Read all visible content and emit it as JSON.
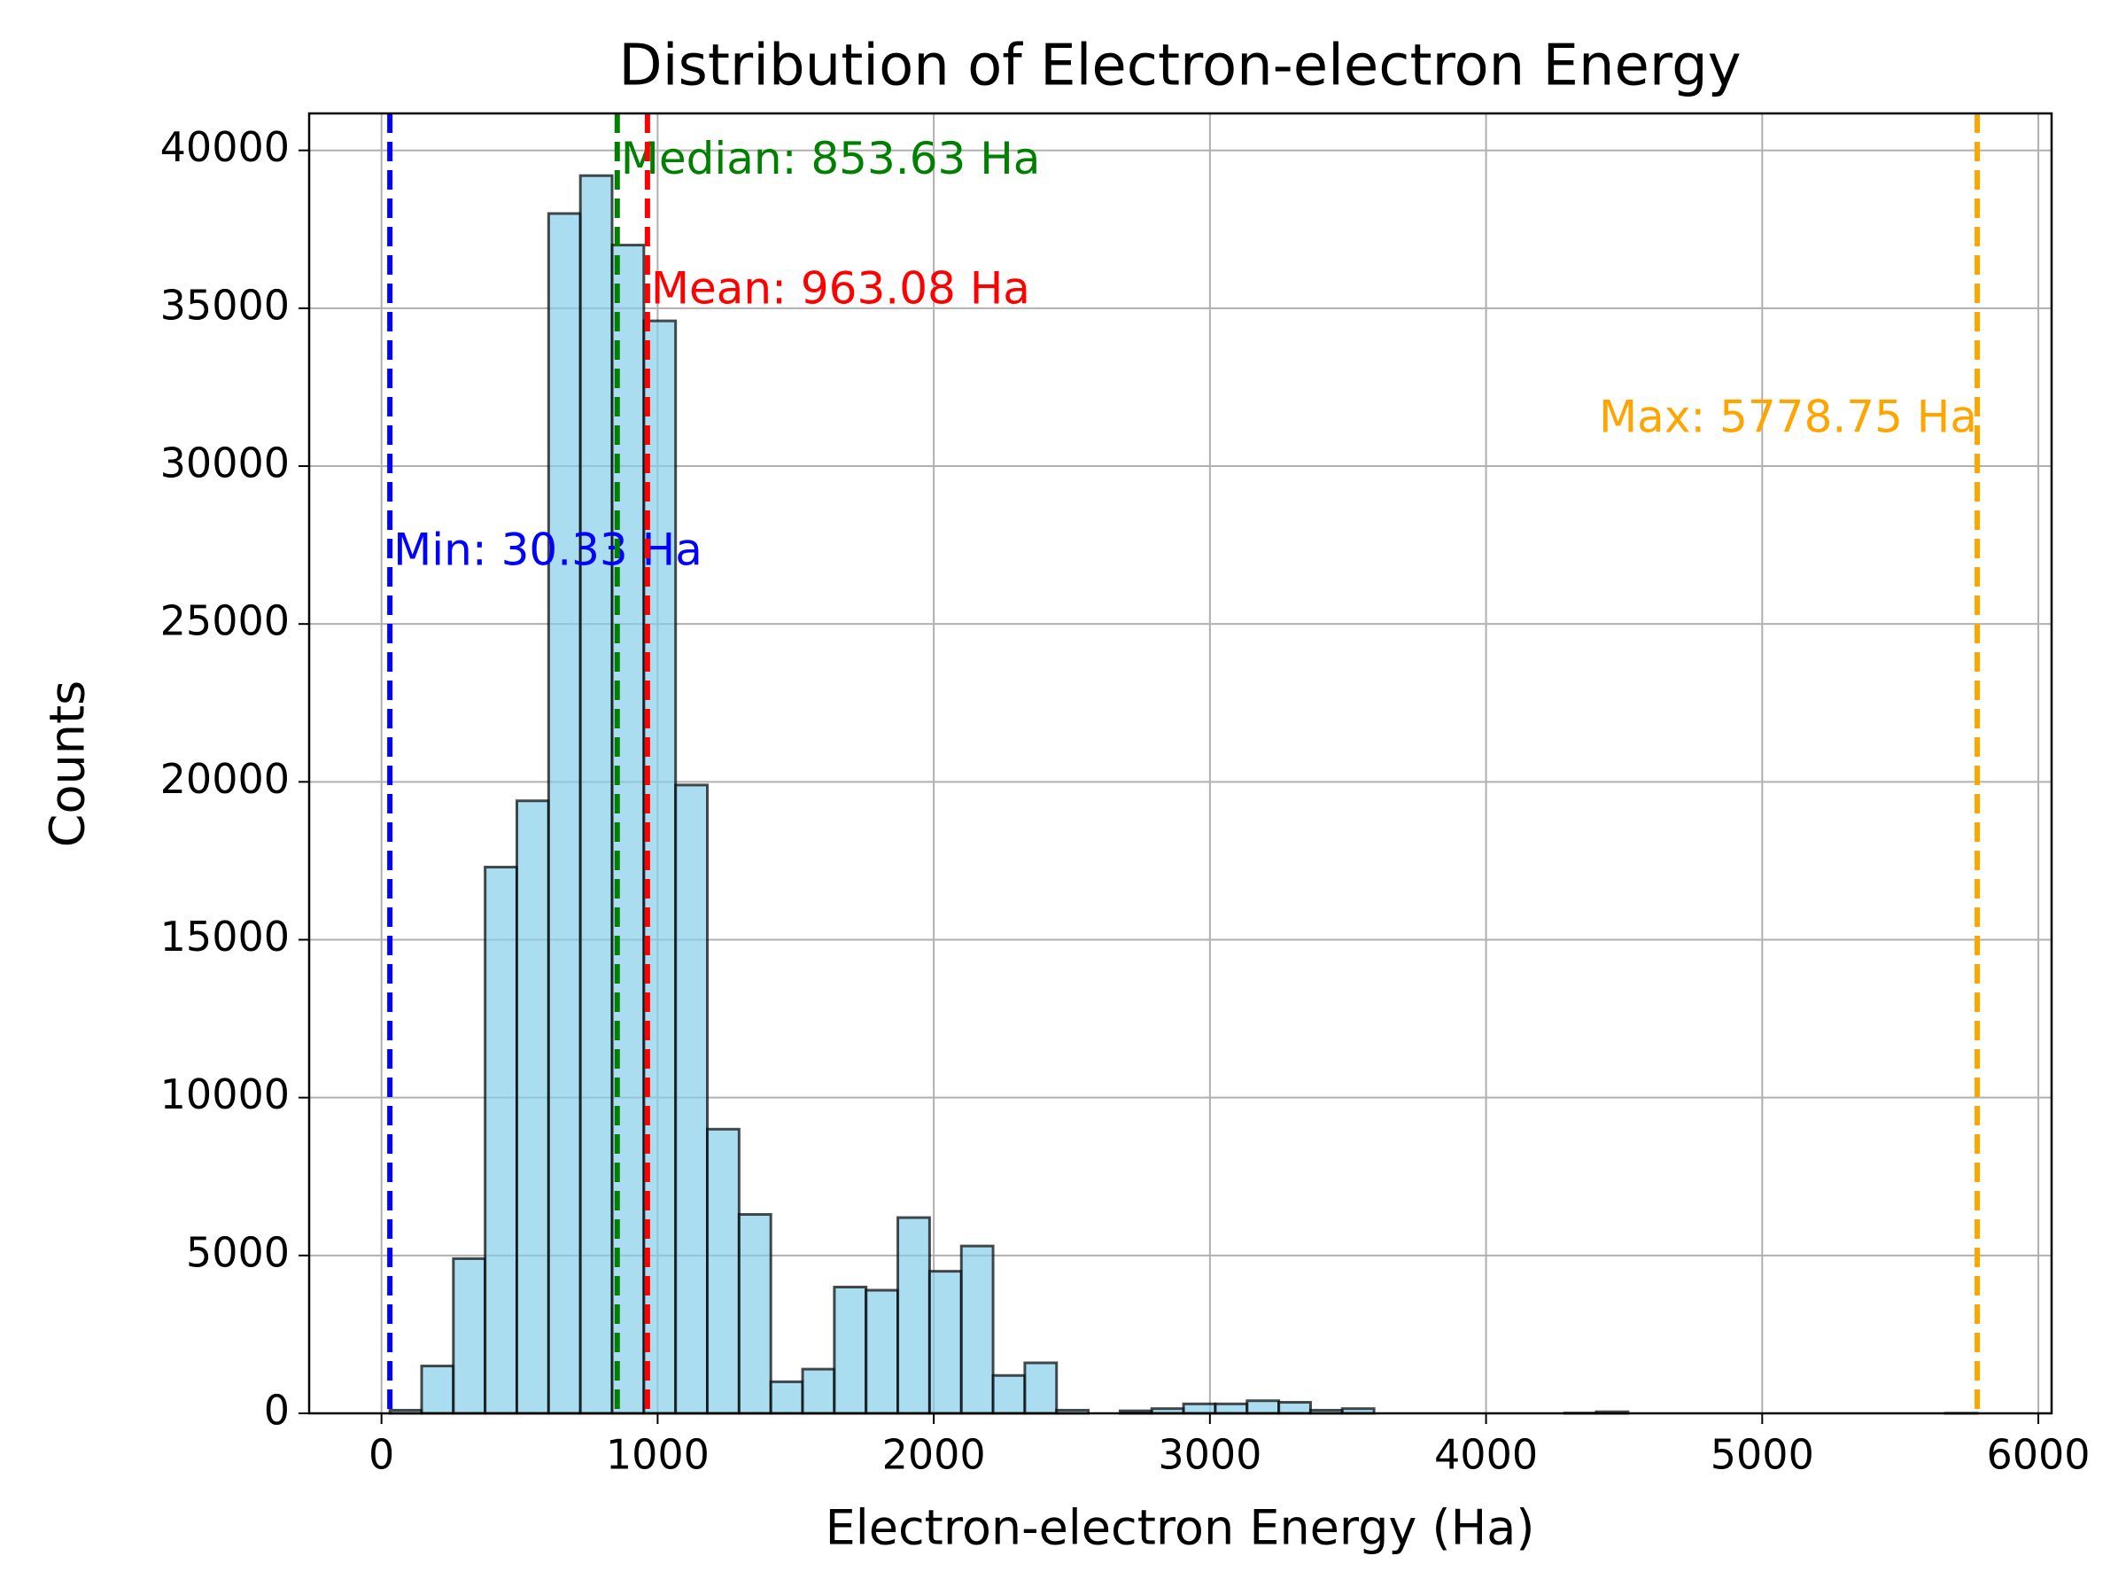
{
  "chart_data": {
    "type": "histogram",
    "title": "Distribution of Electron-electron Energy",
    "x_label": "Electron-electron Energy (Ha)",
    "y_label": "Counts",
    "bins": [
      30.33,
      145.3,
      260.27,
      375.24,
      490.2,
      605.17,
      720.14,
      835.11,
      950.08,
      1065.05,
      1180.01,
      1294.98,
      1409.95,
      1524.92,
      1639.89,
      1754.86,
      1869.82,
      1984.79,
      2099.76,
      2214.73,
      2329.7,
      2444.67,
      2559.63,
      2674.6,
      2789.57,
      2904.54,
      3019.51,
      3134.48,
      3249.45,
      3364.41,
      3479.38,
      3594.35,
      3709.32,
      3824.29,
      3939.26,
      4054.22,
      4169.19,
      4284.16,
      4399.13,
      4514.1,
      4629.07,
      4744.03,
      4859.0,
      4973.97,
      5088.94,
      5203.91,
      5318.88,
      5433.84,
      5548.81,
      5663.78,
      5778.75
    ],
    "values": [
      100,
      1500,
      4900,
      17300,
      19400,
      38000,
      39200,
      37000,
      34600,
      19900,
      9000,
      6300,
      1000,
      1400,
      4000,
      3900,
      6200,
      4500,
      5300,
      1200,
      1600,
      100,
      0,
      80,
      150,
      300,
      300,
      400,
      350,
      100,
      150,
      0,
      0,
      0,
      0,
      0,
      0,
      10,
      50,
      0,
      0,
      0,
      0,
      0,
      0,
      0,
      0,
      0,
      0,
      5
    ],
    "color": "#87ceeb",
    "edge_color": "#000000",
    "xlim": [
      -262,
      6048
    ],
    "ylim": [
      0,
      41170
    ],
    "xticks": [
      0,
      1000,
      2000,
      3000,
      4000,
      5000,
      6000
    ],
    "yticks": [
      0,
      5000,
      10000,
      15000,
      20000,
      25000,
      30000,
      35000,
      40000
    ],
    "grid": true,
    "reference_lines": [
      {
        "value": 30.33,
        "label": "Min: 30.33 Ha",
        "color": "blue"
      },
      {
        "value": 853.63,
        "label": "Median: 853.63 Ha",
        "color": "green"
      },
      {
        "value": 963.08,
        "label": "Mean: 963.08 Ha",
        "color": "red"
      },
      {
        "value": 5778.75,
        "label": "Max: 5778.75 Ha",
        "color": "orange"
      }
    ]
  }
}
